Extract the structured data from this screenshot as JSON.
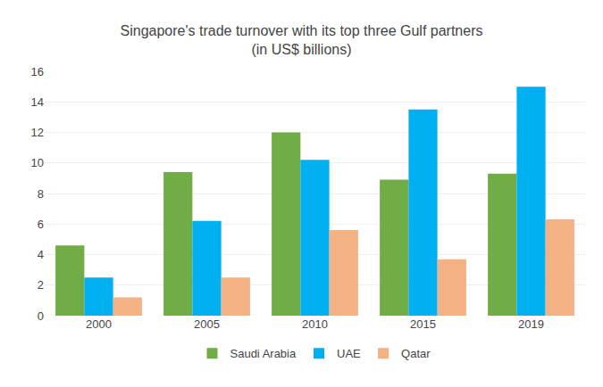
{
  "chart_data": {
    "type": "bar",
    "title": "Singapore's trade turnover with its top three Gulf partners\n(in US$ billions)",
    "categories": [
      "2000",
      "2005",
      "2010",
      "2015",
      "2019"
    ],
    "series": [
      {
        "name": "Saudi Arabia",
        "color": "#70AD47",
        "values": [
          4.6,
          9.4,
          12.0,
          8.9,
          9.3
        ]
      },
      {
        "name": "UAE",
        "color": "#00B0F0",
        "values": [
          2.5,
          6.2,
          10.2,
          13.5,
          15.0
        ]
      },
      {
        "name": "Qatar",
        "color": "#F4B183",
        "values": [
          1.2,
          2.5,
          5.6,
          3.7,
          6.3
        ]
      }
    ],
    "ylim": [
      0,
      16
    ],
    "yticks": [
      0,
      2,
      4,
      6,
      8,
      10,
      12,
      14,
      16
    ],
    "grid": true,
    "legend": "bottom"
  }
}
